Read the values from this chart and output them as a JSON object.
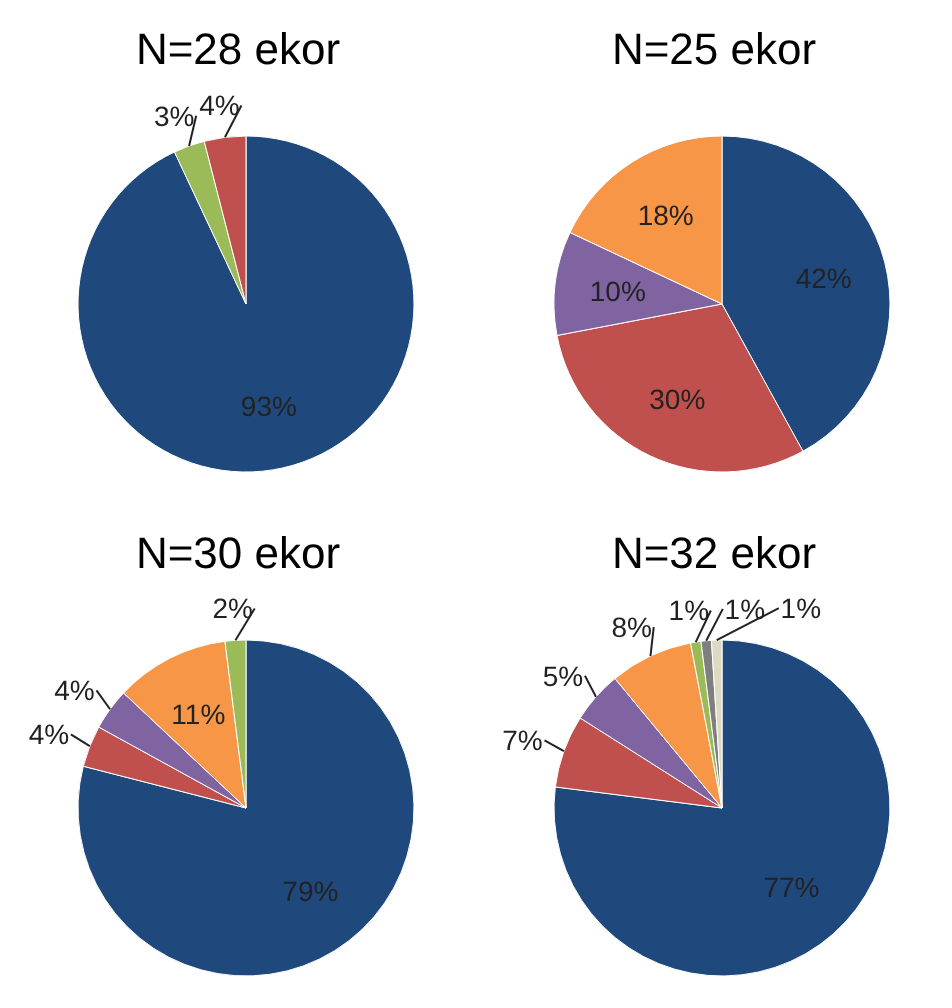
{
  "chart_data": [
    {
      "type": "pie",
      "title": "N=28 ekor",
      "categories": [
        null,
        null,
        null
      ],
      "values": [
        93,
        3,
        4
      ],
      "value_labels": [
        "93%",
        "3%",
        "4%"
      ],
      "colors": [
        "#1f497d",
        "#9bbb59",
        "#c0504d"
      ]
    },
    {
      "type": "pie",
      "title": "N=25 ekor",
      "categories": [
        null,
        null,
        null,
        null
      ],
      "values": [
        42,
        30,
        10,
        18
      ],
      "value_labels": [
        "42%",
        "30%",
        "10%",
        "18%"
      ],
      "colors": [
        "#1f497d",
        "#c0504d",
        "#8064a2",
        "#f79646"
      ]
    },
    {
      "type": "pie",
      "title": "N=30 ekor",
      "categories": [
        null,
        null,
        null,
        null,
        null
      ],
      "values": [
        79,
        4,
        4,
        11,
        2
      ],
      "value_labels": [
        "79%",
        "4%",
        "4%",
        "11%",
        "2%"
      ],
      "colors": [
        "#1f497d",
        "#c0504d",
        "#8064a2",
        "#f79646",
        "#9bbb59"
      ]
    },
    {
      "type": "pie",
      "title": "N=32 ekor",
      "categories": [
        null,
        null,
        null,
        null,
        null,
        null,
        null
      ],
      "values": [
        77,
        7,
        5,
        8,
        1,
        1,
        1
      ],
      "value_labels": [
        "77%",
        "7%",
        "5%",
        "8%",
        "1%",
        "1%",
        "1%"
      ],
      "colors": [
        "#1f497d",
        "#c0504d",
        "#8064a2",
        "#f79646",
        "#9bbb59",
        "#7f7f7f",
        "#ddd9c3"
      ]
    }
  ]
}
